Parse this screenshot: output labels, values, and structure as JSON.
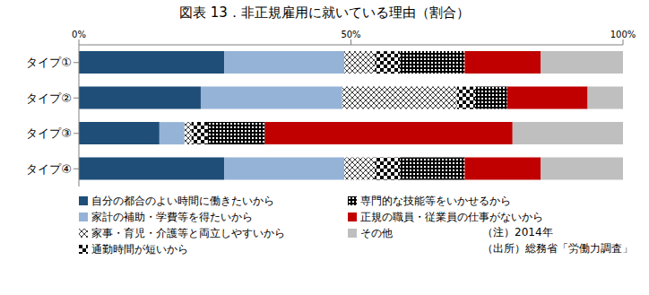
{
  "chart_data": {
    "type": "bar",
    "title": "図表 13．非正規雇用に就いている理由（割合）",
    "orientation": "horizontal",
    "stacked": true,
    "grid": false,
    "categories": [
      "タイプ①",
      "タイプ②",
      "タイプ③",
      "タイプ④"
    ],
    "xlim": [
      0,
      100
    ],
    "xticks": [
      {
        "value": 0,
        "label": "0%"
      },
      {
        "value": 50,
        "label": "50%"
      },
      {
        "value": 100,
        "label": "100%"
      }
    ],
    "series": [
      {
        "name": "自分の都合のよい時間に働きたいから",
        "color": "#1f4e79",
        "values": [
          26.7,
          22.4,
          14.8,
          26.7
        ]
      },
      {
        "name": "家計の補助・学費等を得たいから",
        "color": "#95b3d7",
        "values": [
          22.1,
          26.0,
          4.6,
          22.1
        ]
      },
      {
        "name": "家事・育児・介護等と両立しやすいから",
        "color": "#404040",
        "values": [
          5.6,
          21.1,
          1.3,
          5.6
        ]
      },
      {
        "name": "通勤時間が短いから",
        "color": "#000000",
        "values": [
          4.6,
          3.3,
          3.0,
          4.6
        ]
      },
      {
        "name": "専門的な技能等をいかせるから",
        "color": "#000000",
        "values": [
          11.9,
          5.9,
          10.5,
          11.9
        ]
      },
      {
        "name": "正規の職員・従業員の仕事がないから",
        "color": "#c00000",
        "values": [
          14.0,
          14.8,
          45.5,
          14.0
        ]
      },
      {
        "name": "その他",
        "color": "#bfbfbf",
        "values": [
          15.1,
          6.5,
          20.3,
          15.1
        ]
      }
    ],
    "notes": [
      "（注）2014年",
      "（出所）総務省「労働力調査」"
    ]
  }
}
